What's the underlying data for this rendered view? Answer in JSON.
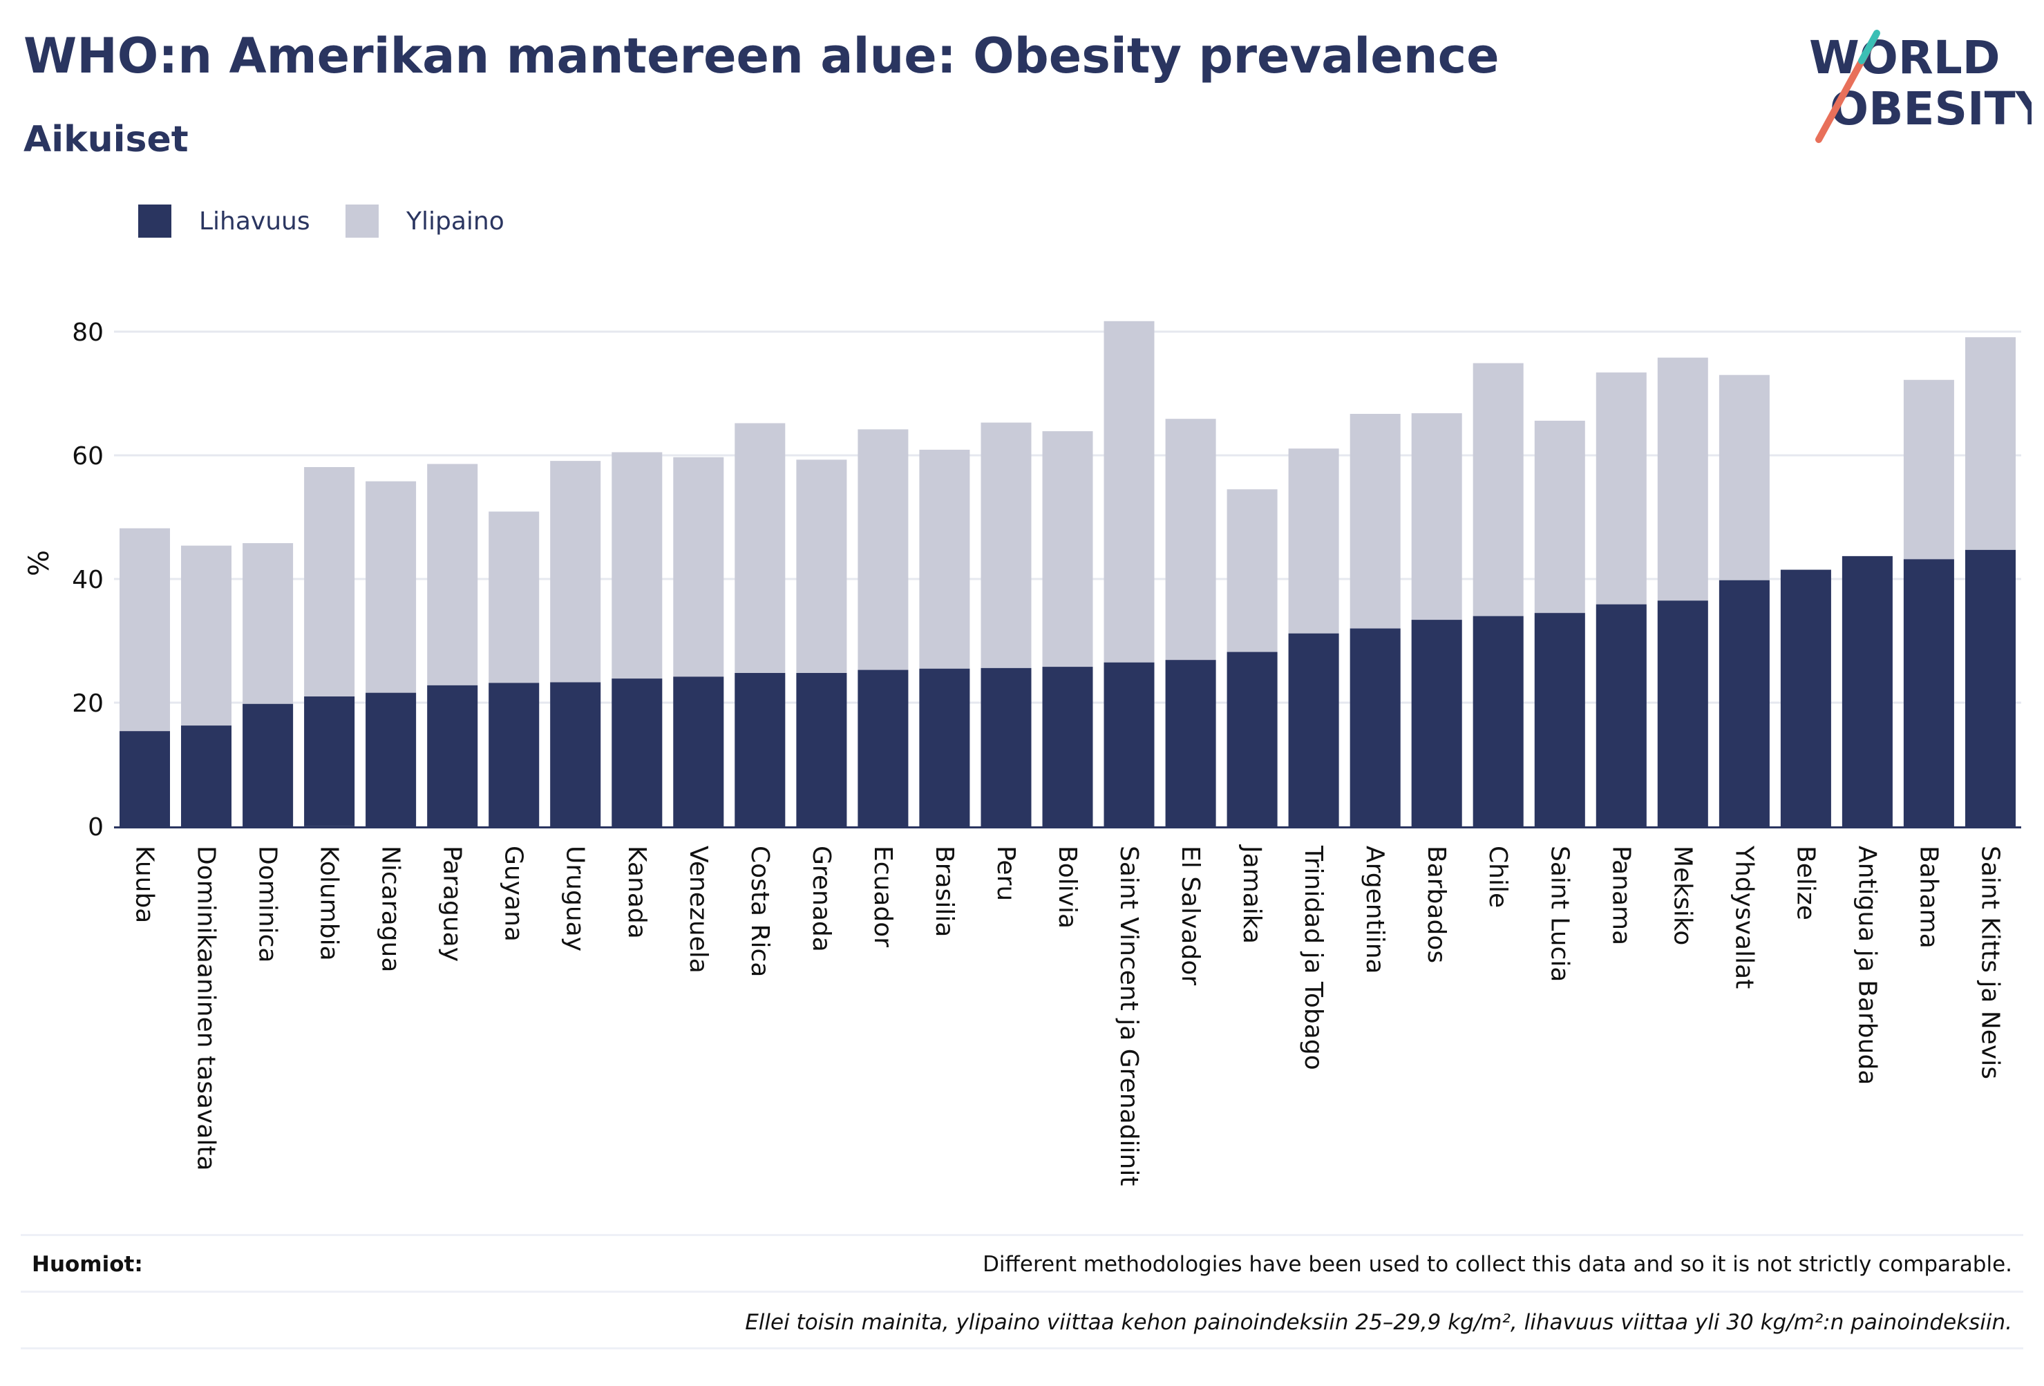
{
  "header": {
    "title": "WHO:n Amerikan mantereen alue: Obesity prevalence",
    "subtitle": "Aikuiset"
  },
  "logo": {
    "line1": "WORLD",
    "line2": "OBESITY",
    "colors": {
      "text": "#2a3560",
      "slash_orange": "#e8705a",
      "slash_teal": "#3bbfb5"
    }
  },
  "legend": {
    "items": [
      {
        "label": "Lihavuus",
        "color": "#2a3560"
      },
      {
        "label": "Ylipaino",
        "color": "#c9cbd8"
      }
    ]
  },
  "chart_data": {
    "type": "bar",
    "stacked": false,
    "overlapping": true,
    "ylabel": "%",
    "ylim": [
      0,
      82
    ],
    "yticks": [
      0,
      20,
      40,
      60,
      80
    ],
    "grid": true,
    "legend_position": "top-left",
    "categories": [
      "Kuuba",
      "Dominikaaninen tasavalta",
      "Dominica",
      "Kolumbia",
      "Nicaragua",
      "Paraguay",
      "Guyana",
      "Uruguay",
      "Kanada",
      "Venezuela",
      "Costa Rica",
      "Grenada",
      "Ecuador",
      "Brasilia",
      "Peru",
      "Bolivia",
      "Saint Vincent ja Grenadiinit",
      "El Salvador",
      "Jamaika",
      "Trinidad ja Tobago",
      "Argentiina",
      "Barbados",
      "Chile",
      "Saint Lucia",
      "Panama",
      "Meksiko",
      "Yhdysvallat",
      "Belize",
      "Antigua ja Barbuda",
      "Bahama",
      "Saint Kitts ja Nevis"
    ],
    "series": [
      {
        "name": "Ylipaino",
        "color": "#c9cbd8",
        "values": [
          48.2,
          45.4,
          45.8,
          58.1,
          55.8,
          58.6,
          50.9,
          59.1,
          60.5,
          59.7,
          65.2,
          59.3,
          64.2,
          60.9,
          65.3,
          63.9,
          81.7,
          65.9,
          54.5,
          61.1,
          66.7,
          66.8,
          74.9,
          65.6,
          73.4,
          75.8,
          73.0,
          41.5,
          43.7,
          72.2,
          79.1
        ]
      },
      {
        "name": "Lihavuus",
        "color": "#2a3560",
        "values": [
          15.4,
          16.3,
          19.8,
          21.0,
          21.6,
          22.8,
          23.2,
          23.3,
          23.9,
          24.2,
          24.8,
          24.8,
          25.3,
          25.5,
          25.6,
          25.8,
          26.5,
          26.9,
          28.2,
          31.2,
          32.0,
          33.4,
          34.0,
          34.5,
          35.9,
          36.5,
          39.8,
          41.5,
          43.7,
          43.2,
          44.7
        ]
      }
    ]
  },
  "notes": {
    "label": "Huomiot:",
    "text": "Different methodologies have been used to collect this data and so it is not strictly comparable.",
    "footnote": "Ellei toisin mainita, ylipaino viittaa kehon painoindeksiin 25–29,9 kg/m², lihavuus viittaa yli 30 kg/m²:n painoindeksiin."
  }
}
